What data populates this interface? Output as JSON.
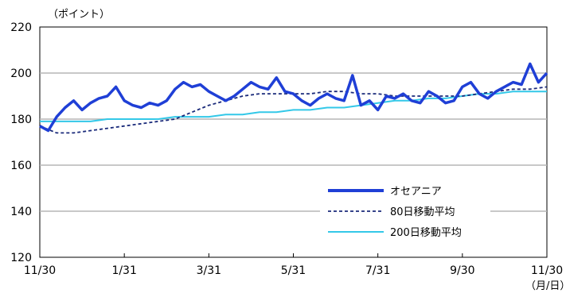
{
  "chart_data": {
    "type": "line",
    "y_unit_label": "（ポイント）",
    "x_unit_label": "（月/日）",
    "xlabel": "",
    "ylabel": "",
    "ylim": [
      120,
      220
    ],
    "y_ticks": [
      120,
      140,
      160,
      180,
      200,
      220
    ],
    "x_tick_labels": [
      "11/30",
      "1/31",
      "3/31",
      "5/31",
      "7/31",
      "9/30",
      "11/30"
    ],
    "grid": "horizontal",
    "legend_position": "lower-right inside plot",
    "series": [
      {
        "name": "オセアニア",
        "color": "#1f3fd6",
        "style": "solid-thick",
        "x": [
          0,
          1,
          2,
          3,
          4,
          5,
          6,
          7,
          8,
          9,
          10,
          11,
          12,
          13,
          14,
          15,
          16,
          17,
          18,
          19,
          20,
          21,
          22,
          23,
          24,
          25,
          26,
          27,
          28,
          29,
          30,
          31,
          32,
          33,
          34,
          35,
          36,
          37,
          38,
          39,
          40,
          41,
          42,
          43,
          44,
          45,
          46,
          47,
          48,
          49,
          50,
          51,
          52,
          53,
          54,
          55,
          56,
          57,
          58,
          59,
          60
        ],
        "y": [
          177,
          175,
          181,
          185,
          188,
          184,
          187,
          189,
          190,
          194,
          188,
          186,
          185,
          187,
          186,
          188,
          193,
          196,
          194,
          195,
          192,
          190,
          188,
          190,
          193,
          196,
          194,
          193,
          198,
          192,
          191,
          188,
          186,
          189,
          191,
          189,
          188,
          199,
          186,
          188,
          184,
          190,
          189,
          191,
          188,
          187,
          192,
          190,
          187,
          188,
          194,
          196,
          191,
          189,
          192,
          194,
          196,
          195,
          204,
          196,
          200
        ]
      },
      {
        "name": "80日移動平均",
        "color": "#1a2a7a",
        "style": "dashed",
        "x": [
          0,
          2,
          4,
          6,
          8,
          10,
          12,
          14,
          16,
          18,
          20,
          22,
          24,
          26,
          28,
          30,
          32,
          34,
          36,
          38,
          40,
          42,
          44,
          46,
          48,
          50,
          52,
          54,
          56,
          58,
          60
        ],
        "y": [
          177,
          174,
          174,
          175,
          176,
          177,
          178,
          179,
          180,
          183,
          186,
          188,
          190,
          191,
          191,
          191,
          191,
          192,
          192,
          191,
          191,
          190,
          190,
          190,
          190,
          190,
          191,
          192,
          193,
          193,
          194
        ]
      },
      {
        "name": "200日移動平均",
        "color": "#33c8e8",
        "style": "solid",
        "x": [
          0,
          2,
          4,
          6,
          8,
          10,
          12,
          14,
          16,
          18,
          20,
          22,
          24,
          26,
          28,
          30,
          32,
          34,
          36,
          38,
          40,
          42,
          44,
          46,
          48,
          50,
          52,
          54,
          56,
          58,
          60
        ],
        "y": [
          179,
          179,
          179,
          179,
          180,
          180,
          180,
          180,
          181,
          181,
          181,
          182,
          182,
          183,
          183,
          184,
          184,
          185,
          185,
          186,
          187,
          188,
          188,
          189,
          189,
          190,
          191,
          191,
          192,
          192,
          192
        ]
      }
    ]
  }
}
